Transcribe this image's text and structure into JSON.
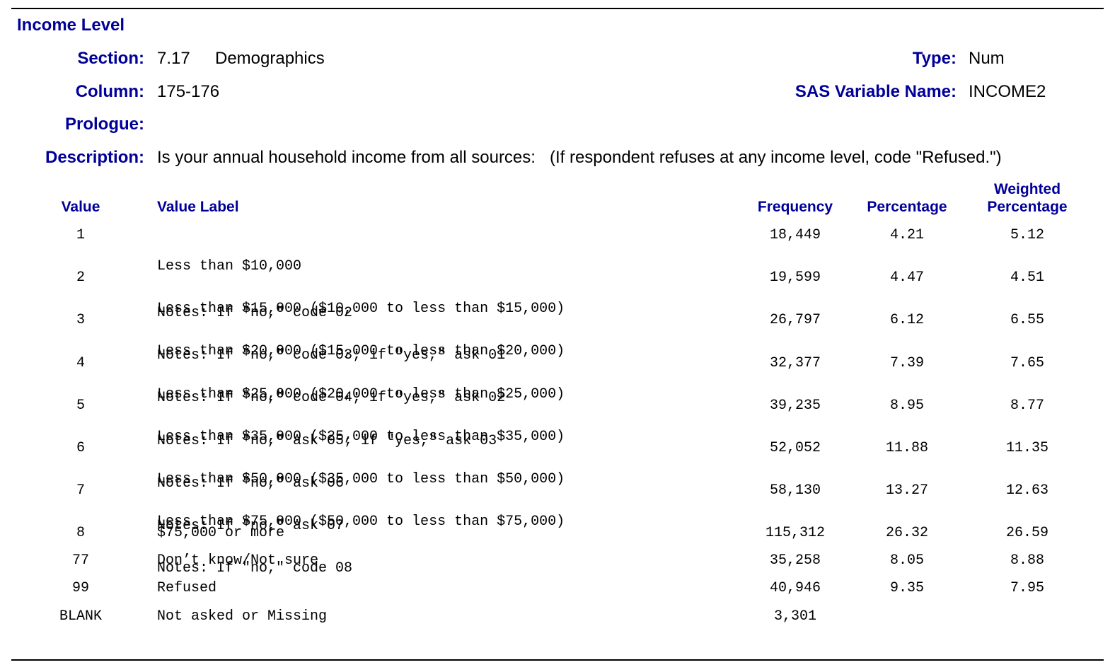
{
  "title": "Income Level",
  "meta": {
    "section_label": "Section:",
    "section_number": "7.17",
    "section_name": "Demographics",
    "type_label": "Type:",
    "type_value": "Num",
    "column_label": "Column:",
    "column_value": "175-176",
    "sas_label": "SAS Variable Name:",
    "sas_value": "INCOME2",
    "prologue_label": "Prologue:",
    "description_label": "Description:",
    "description_value": "Is your annual household income from all sources:   (If respondent refuses at any income level, code \"Refused.\")"
  },
  "table": {
    "headers": {
      "value": "Value",
      "value_label": "Value Label",
      "frequency": "Frequency",
      "percentage": "Percentage",
      "weighted_line1": "Weighted",
      "weighted_line2": "Percentage"
    },
    "rows": [
      {
        "value": "1",
        "label": "Less than $10,000",
        "note": "Notes: If \"no,\" code 02",
        "frequency": "18,449",
        "percentage": "4.21",
        "weighted": "5.12"
      },
      {
        "value": "2",
        "label": "Less than $15,000 ($10,000 to less than $15,000)",
        "note": "Notes: If \"no,\" code 03; if \"yes,\" ask 01",
        "frequency": "19,599",
        "percentage": "4.47",
        "weighted": "4.51"
      },
      {
        "value": "3",
        "label": "Less than $20,000 ($15,000 to less than $20,000)",
        "note": "Notes: If \"no,\" code 04; if \"yes,\" ask 02",
        "frequency": "26,797",
        "percentage": "6.12",
        "weighted": "6.55"
      },
      {
        "value": "4",
        "label": "Less than $25,000 ($20,000 to less than $25,000)",
        "note": "Notes: If \"no,\" ask 05; if \"yes,\" ask 03",
        "frequency": "32,377",
        "percentage": "7.39",
        "weighted": "7.65"
      },
      {
        "value": "5",
        "label": "Less than $35,000 ($25,000 to less than $35,000)",
        "note": "Notes: If \"no,\" ask 06",
        "frequency": "39,235",
        "percentage": "8.95",
        "weighted": "8.77"
      },
      {
        "value": "6",
        "label": "Less than $50,000 ($35,000 to less than $50,000)",
        "note": "Notes: If \"no,\" ask 07",
        "frequency": "52,052",
        "percentage": "11.88",
        "weighted": "11.35"
      },
      {
        "value": "7",
        "label": "Less than $75,000 ($50,000 to less than $75,000)",
        "note": "Notes: If \"no,\" code 08",
        "frequency": "58,130",
        "percentage": "13.27",
        "weighted": "12.63"
      },
      {
        "value": "8",
        "label": "$75,000 or more",
        "note": "",
        "frequency": "115,312",
        "percentage": "26.32",
        "weighted": "26.59"
      },
      {
        "value": "77",
        "label": "Don’t know/Not sure",
        "note": "",
        "frequency": "35,258",
        "percentage": "8.05",
        "weighted": "8.88"
      },
      {
        "value": "99",
        "label": "Refused",
        "note": "",
        "frequency": "40,946",
        "percentage": "9.35",
        "weighted": "7.95"
      },
      {
        "value": "BLANK",
        "label": "Not asked or Missing",
        "note": "",
        "frequency": "3,301",
        "percentage": "",
        "weighted": ""
      }
    ]
  }
}
